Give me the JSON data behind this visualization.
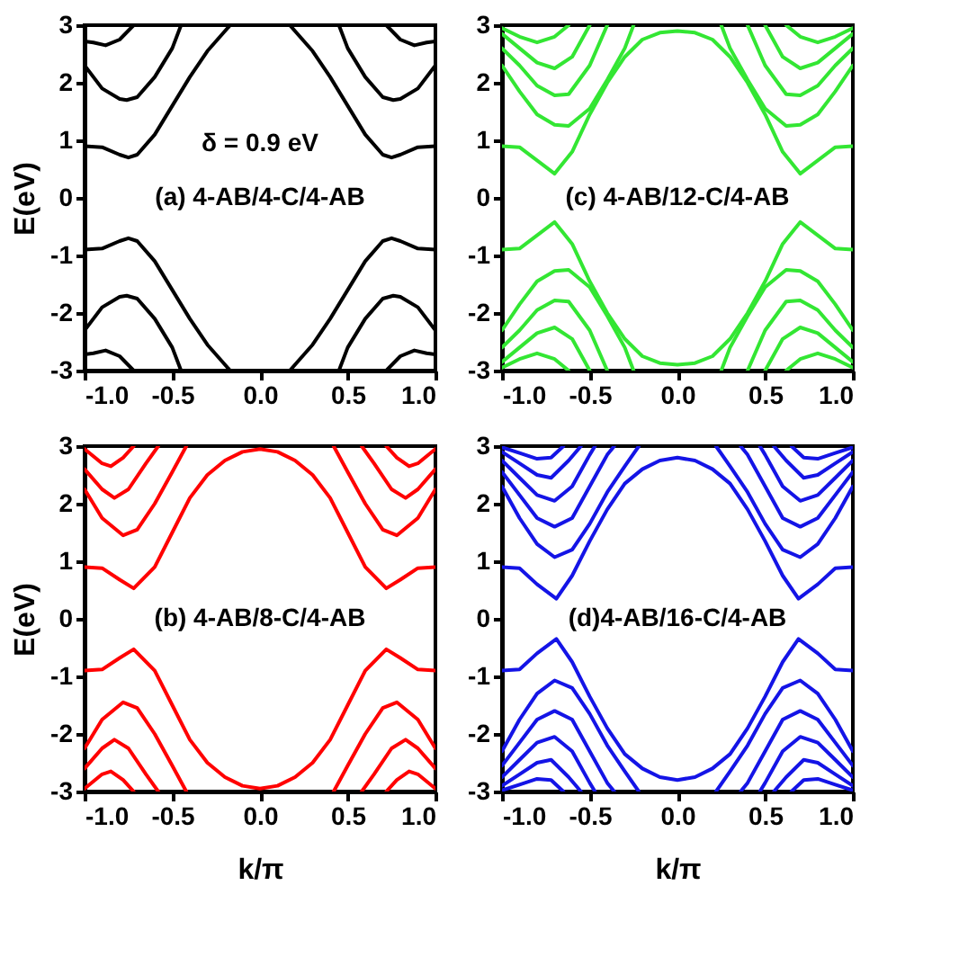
{
  "chart_data": [
    {
      "type": "line",
      "ylabel": "E(eV)",
      "annotations": [
        "δ = 0.9 eV",
        "(a)   4-AB/4-C/4-AB"
      ],
      "xlim": [
        -1,
        1
      ],
      "ylim": [
        -3,
        3
      ],
      "xticks": [
        {
          "value": -1,
          "label": "-1.0"
        },
        {
          "value": -0.5,
          "label": "-0.5"
        },
        {
          "value": 0,
          "label": "0.0"
        },
        {
          "value": 0.5,
          "label": "0.5"
        },
        {
          "value": 1,
          "label": "1.0"
        }
      ],
      "yticks": [
        -3,
        -2,
        -1,
        0,
        1,
        2,
        3
      ],
      "series": [
        {
          "color": "#000000",
          "x": [
            -1,
            -0.9,
            -0.8,
            -0.75,
            -0.7,
            -0.6,
            -0.5,
            -0.4,
            -0.3,
            -0.17,
            0,
            0.17,
            0.3,
            0.4,
            0.5,
            0.6,
            0.7,
            0.75,
            0.8,
            0.9,
            1
          ],
          "values": [
            0.9,
            0.88,
            0.75,
            0.7,
            0.75,
            1.1,
            1.6,
            2.1,
            2.55,
            3,
            null,
            3,
            2.55,
            2.1,
            1.6,
            1.1,
            0.75,
            0.7,
            0.75,
            0.88,
            0.9
          ]
        },
        {
          "color": "#000000",
          "x": [
            -1,
            -0.9,
            -0.8,
            -0.76,
            -0.7,
            -0.6,
            -0.5,
            -0.45,
            0,
            0.45,
            0.5,
            0.6,
            0.7,
            0.76,
            0.8,
            0.9,
            1
          ],
          "values": [
            2.3,
            1.9,
            1.72,
            1.7,
            1.75,
            2.1,
            2.6,
            3,
            null,
            3,
            2.6,
            2.1,
            1.75,
            1.7,
            1.72,
            1.9,
            2.3
          ]
        },
        {
          "color": "#000000",
          "x": [
            -1,
            -0.95,
            -0.88,
            -0.8,
            -0.72,
            0,
            0.72,
            0.8,
            0.88,
            0.95,
            1
          ],
          "values": [
            2.72,
            2.7,
            2.65,
            2.75,
            3,
            null,
            3,
            2.75,
            2.65,
            2.7,
            2.72
          ]
        },
        {
          "color": "#000000",
          "x": [
            -1,
            -0.9,
            -0.8,
            -0.75,
            -0.7,
            -0.6,
            -0.5,
            -0.4,
            -0.3,
            -0.17,
            0,
            0.17,
            0.3,
            0.4,
            0.5,
            0.6,
            0.7,
            0.75,
            0.8,
            0.9,
            1
          ],
          "values": [
            -0.9,
            -0.88,
            -0.75,
            -0.7,
            -0.75,
            -1.1,
            -1.6,
            -2.1,
            -2.55,
            -3,
            null,
            -3,
            -2.55,
            -2.1,
            -1.6,
            -1.1,
            -0.75,
            -0.7,
            -0.75,
            -0.88,
            -0.9
          ]
        },
        {
          "color": "#000000",
          "x": [
            -1,
            -0.9,
            -0.8,
            -0.76,
            -0.7,
            -0.6,
            -0.5,
            -0.45,
            0,
            0.45,
            0.5,
            0.6,
            0.7,
            0.76,
            0.8,
            0.9,
            1
          ],
          "values": [
            -2.3,
            -1.9,
            -1.72,
            -1.7,
            -1.75,
            -2.1,
            -2.6,
            -3,
            null,
            -3,
            -2.6,
            -2.1,
            -1.75,
            -1.7,
            -1.72,
            -1.9,
            -2.3
          ]
        },
        {
          "color": "#000000",
          "x": [
            -1,
            -0.95,
            -0.88,
            -0.8,
            -0.72,
            0,
            0.72,
            0.8,
            0.88,
            0.95,
            1
          ],
          "values": [
            -2.72,
            -2.7,
            -2.65,
            -2.75,
            -3,
            null,
            -3,
            -2.75,
            -2.65,
            -2.7,
            -2.72
          ]
        }
      ]
    },
    {
      "type": "line",
      "annotations": [
        "(c)  4-AB/12-C/4-AB"
      ],
      "xlim": [
        -1,
        1
      ],
      "ylim": [
        -3,
        3
      ],
      "xticks": [
        {
          "value": -1,
          "label": "-1.0"
        },
        {
          "value": -0.5,
          "label": "-0.5"
        },
        {
          "value": 0,
          "label": "0.0"
        },
        {
          "value": 0.5,
          "label": "0.5"
        },
        {
          "value": 1,
          "label": "1.0"
        }
      ],
      "yticks": [
        -3,
        -2,
        -1,
        0,
        1,
        2,
        3
      ],
      "series": [
        {
          "color": "#33e633",
          "x": [
            -1,
            -0.9,
            -0.8,
            -0.7,
            -0.6,
            -0.5,
            -0.4,
            -0.3,
            -0.2,
            -0.1,
            0,
            0.1,
            0.2,
            0.3,
            0.4,
            0.5,
            0.6,
            0.7,
            0.8,
            0.9,
            1
          ],
          "values": [
            0.9,
            0.88,
            0.65,
            0.42,
            0.8,
            1.45,
            2,
            2.45,
            2.75,
            2.87,
            2.9,
            2.87,
            2.75,
            2.45,
            2,
            1.45,
            0.8,
            0.42,
            0.65,
            0.88,
            0.9
          ]
        },
        {
          "color": "#33e633",
          "x": [
            -1,
            -0.9,
            -0.8,
            -0.7,
            -0.62,
            -0.5,
            -0.4,
            -0.3,
            -0.25,
            0,
            0.25,
            0.3,
            0.4,
            0.5,
            0.62,
            0.7,
            0.8,
            0.9,
            1
          ],
          "values": [
            2.3,
            1.85,
            1.45,
            1.27,
            1.25,
            1.55,
            2.05,
            2.6,
            3,
            null,
            3,
            2.6,
            2.05,
            1.55,
            1.25,
            1.27,
            1.45,
            1.85,
            2.3
          ]
        },
        {
          "color": "#33e633",
          "x": [
            -1,
            -0.9,
            -0.8,
            -0.7,
            -0.62,
            -0.5,
            -0.4,
            0,
            0.4,
            0.5,
            0.62,
            0.7,
            0.8,
            0.9,
            1
          ],
          "values": [
            2.6,
            2.3,
            1.95,
            1.78,
            1.8,
            2.3,
            3,
            null,
            3,
            2.3,
            1.8,
            1.78,
            1.95,
            2.3,
            2.6
          ]
        },
        {
          "color": "#33e633",
          "x": [
            -1,
            -0.9,
            -0.8,
            -0.7,
            -0.6,
            -0.5,
            0,
            0.5,
            0.6,
            0.7,
            0.8,
            0.9,
            1
          ],
          "values": [
            2.85,
            2.6,
            2.35,
            2.25,
            2.45,
            3,
            null,
            3,
            2.45,
            2.25,
            2.35,
            2.6,
            2.85
          ]
        },
        {
          "color": "#33e633",
          "x": [
            -1,
            -0.9,
            -0.8,
            -0.7,
            -0.62,
            0,
            0.62,
            0.7,
            0.8,
            0.9,
            1
          ],
          "values": [
            2.95,
            2.8,
            2.7,
            2.8,
            3,
            null,
            3,
            2.8,
            2.7,
            2.8,
            2.95
          ]
        },
        {
          "color": "#33e633",
          "x": [
            -1,
            -0.9,
            -0.8,
            -0.7,
            -0.6,
            -0.5,
            -0.4,
            -0.3,
            -0.2,
            -0.1,
            0,
            0.1,
            0.2,
            0.3,
            0.4,
            0.5,
            0.6,
            0.7,
            0.8,
            0.9,
            1
          ],
          "values": [
            -0.9,
            -0.88,
            -0.65,
            -0.42,
            -0.8,
            -1.45,
            -2,
            -2.45,
            -2.75,
            -2.87,
            -2.9,
            -2.87,
            -2.75,
            -2.45,
            -2,
            -1.45,
            -0.8,
            -0.42,
            -0.65,
            -0.88,
            -0.9
          ]
        },
        {
          "color": "#33e633",
          "x": [
            -1,
            -0.9,
            -0.8,
            -0.7,
            -0.62,
            -0.5,
            -0.4,
            -0.3,
            -0.25,
            0,
            0.25,
            0.3,
            0.4,
            0.5,
            0.62,
            0.7,
            0.8,
            0.9,
            1
          ],
          "values": [
            -2.3,
            -1.85,
            -1.45,
            -1.27,
            -1.25,
            -1.55,
            -2.05,
            -2.6,
            -3,
            null,
            -3,
            -2.6,
            -2.05,
            -1.55,
            -1.25,
            -1.27,
            -1.45,
            -1.85,
            -2.3
          ]
        },
        {
          "color": "#33e633",
          "x": [
            -1,
            -0.9,
            -0.8,
            -0.7,
            -0.62,
            -0.5,
            -0.4,
            0,
            0.4,
            0.5,
            0.62,
            0.7,
            0.8,
            0.9,
            1
          ],
          "values": [
            -2.6,
            -2.3,
            -1.95,
            -1.78,
            -1.8,
            -2.3,
            -3,
            null,
            -3,
            -2.3,
            -1.8,
            -1.78,
            -1.95,
            -2.3,
            -2.6
          ]
        },
        {
          "color": "#33e633",
          "x": [
            -1,
            -0.9,
            -0.8,
            -0.7,
            -0.6,
            -0.5,
            0,
            0.5,
            0.6,
            0.7,
            0.8,
            0.9,
            1
          ],
          "values": [
            -2.85,
            -2.6,
            -2.35,
            -2.25,
            -2.45,
            -3,
            null,
            -3,
            -2.45,
            -2.25,
            -2.35,
            -2.6,
            -2.85
          ]
        },
        {
          "color": "#33e633",
          "x": [
            -1,
            -0.9,
            -0.8,
            -0.7,
            -0.62,
            0,
            0.62,
            0.7,
            0.8,
            0.9,
            1
          ],
          "values": [
            -2.95,
            -2.8,
            -2.7,
            -2.8,
            -3,
            null,
            -3,
            -2.8,
            -2.7,
            -2.8,
            -2.95
          ]
        }
      ]
    },
    {
      "type": "line",
      "xlabel": "k/π",
      "ylabel": "E(eV)",
      "annotations": [
        "(b) 4-AB/8-C/4-AB"
      ],
      "xlim": [
        -1,
        1
      ],
      "ylim": [
        -3,
        3
      ],
      "xticks": [
        {
          "value": -1,
          "label": "-1.0"
        },
        {
          "value": -0.5,
          "label": "-0.5"
        },
        {
          "value": 0,
          "label": "0.0"
        },
        {
          "value": 0.5,
          "label": "0.5"
        },
        {
          "value": 1,
          "label": "1.0"
        }
      ],
      "yticks": [
        -3,
        -2,
        -1,
        0,
        1,
        2,
        3
      ],
      "series": [
        {
          "color": "#ff0000",
          "x": [
            -1,
            -0.9,
            -0.8,
            -0.72,
            -0.6,
            -0.5,
            -0.4,
            -0.3,
            -0.2,
            -0.1,
            0,
            0.1,
            0.2,
            0.3,
            0.4,
            0.5,
            0.6,
            0.72,
            0.8,
            0.9,
            1
          ],
          "values": [
            0.9,
            0.88,
            0.68,
            0.53,
            0.9,
            1.5,
            2.1,
            2.5,
            2.75,
            2.9,
            2.95,
            2.9,
            2.75,
            2.5,
            2.1,
            1.5,
            0.9,
            0.53,
            0.68,
            0.88,
            0.9
          ]
        },
        {
          "color": "#ff0000",
          "x": [
            -1,
            -0.9,
            -0.78,
            -0.7,
            -0.6,
            -0.5,
            -0.42,
            0,
            0.42,
            0.5,
            0.6,
            0.7,
            0.78,
            0.9,
            1
          ],
          "values": [
            2.25,
            1.75,
            1.45,
            1.55,
            2,
            2.55,
            3,
            null,
            3,
            2.55,
            2,
            1.55,
            1.45,
            1.75,
            2.25
          ]
        },
        {
          "color": "#ff0000",
          "x": [
            -1,
            -0.9,
            -0.83,
            -0.75,
            -0.65,
            -0.58,
            0,
            0.58,
            0.65,
            0.75,
            0.83,
            0.9,
            1
          ],
          "values": [
            2.6,
            2.25,
            2.1,
            2.25,
            2.7,
            3,
            null,
            3,
            2.7,
            2.25,
            2.1,
            2.25,
            2.6
          ]
        },
        {
          "color": "#ff0000",
          "x": [
            -1,
            -0.9,
            -0.85,
            -0.78,
            -0.72,
            0,
            0.72,
            0.78,
            0.85,
            0.9,
            1
          ],
          "values": [
            2.95,
            2.7,
            2.65,
            2.8,
            3,
            null,
            3,
            2.8,
            2.65,
            2.7,
            2.95
          ]
        },
        {
          "color": "#ff0000",
          "x": [
            -1,
            -0.9,
            -0.8,
            -0.72,
            -0.6,
            -0.5,
            -0.4,
            -0.3,
            -0.2,
            -0.1,
            0,
            0.1,
            0.2,
            0.3,
            0.4,
            0.5,
            0.6,
            0.72,
            0.8,
            0.9,
            1
          ],
          "values": [
            -0.9,
            -0.88,
            -0.68,
            -0.53,
            -0.9,
            -1.5,
            -2.1,
            -2.5,
            -2.75,
            -2.9,
            -2.95,
            -2.9,
            -2.75,
            -2.5,
            -2.1,
            -1.5,
            -0.9,
            -0.53,
            -0.68,
            -0.88,
            -0.9
          ]
        },
        {
          "color": "#ff0000",
          "x": [
            -1,
            -0.9,
            -0.78,
            -0.7,
            -0.6,
            -0.5,
            -0.42,
            0,
            0.42,
            0.5,
            0.6,
            0.7,
            0.78,
            0.9,
            1
          ],
          "values": [
            -2.25,
            -1.75,
            -1.45,
            -1.55,
            -2,
            -2.55,
            -3,
            null,
            -3,
            -2.55,
            -2,
            -1.55,
            -1.45,
            -1.75,
            -2.25
          ]
        },
        {
          "color": "#ff0000",
          "x": [
            -1,
            -0.9,
            -0.83,
            -0.75,
            -0.65,
            -0.58,
            0,
            0.58,
            0.65,
            0.75,
            0.83,
            0.9,
            1
          ],
          "values": [
            -2.6,
            -2.25,
            -2.1,
            -2.25,
            -2.7,
            -3,
            null,
            -3,
            -2.7,
            -2.25,
            -2.1,
            -2.25,
            -2.6
          ]
        },
        {
          "color": "#ff0000",
          "x": [
            -1,
            -0.9,
            -0.85,
            -0.78,
            -0.72,
            0,
            0.72,
            0.78,
            0.85,
            0.9,
            1
          ],
          "values": [
            -2.95,
            -2.7,
            -2.65,
            -2.8,
            -3,
            null,
            -3,
            -2.8,
            -2.65,
            -2.7,
            -2.95
          ]
        }
      ]
    },
    {
      "type": "line",
      "xlabel": "k/π",
      "annotations": [
        "(d)4-AB/16-C/4-AB"
      ],
      "xlim": [
        -1,
        1
      ],
      "ylim": [
        -3,
        3
      ],
      "xticks": [
        {
          "value": -1,
          "label": "-1.0"
        },
        {
          "value": -0.5,
          "label": "-0.5"
        },
        {
          "value": 0,
          "label": "0.0"
        },
        {
          "value": 0.5,
          "label": "0.5"
        },
        {
          "value": 1,
          "label": "1.0"
        }
      ],
      "yticks": [
        -3,
        -2,
        -1,
        0,
        1,
        2,
        3
      ],
      "series": [
        {
          "color": "#1414e6",
          "x": [
            -1,
            -0.9,
            -0.8,
            -0.69,
            -0.6,
            -0.5,
            -0.4,
            -0.3,
            -0.2,
            -0.1,
            0,
            0.1,
            0.2,
            0.3,
            0.4,
            0.5,
            0.6,
            0.69,
            0.8,
            0.9,
            1
          ],
          "values": [
            0.9,
            0.88,
            0.6,
            0.35,
            0.75,
            1.35,
            1.9,
            2.35,
            2.6,
            2.75,
            2.8,
            2.75,
            2.6,
            2.35,
            1.9,
            1.35,
            0.75,
            0.35,
            0.6,
            0.88,
            0.9
          ]
        },
        {
          "color": "#1414e6",
          "x": [
            -1,
            -0.9,
            -0.8,
            -0.7,
            -0.6,
            -0.5,
            -0.4,
            -0.3,
            -0.22,
            0,
            0.22,
            0.3,
            0.4,
            0.5,
            0.6,
            0.7,
            0.8,
            0.9,
            1
          ],
          "values": [
            2.3,
            1.75,
            1.3,
            1.07,
            1.2,
            1.65,
            2.2,
            2.65,
            3,
            null,
            3,
            2.65,
            2.2,
            1.65,
            1.2,
            1.07,
            1.3,
            1.75,
            2.3
          ]
        },
        {
          "color": "#1414e6",
          "x": [
            -1,
            -0.9,
            -0.8,
            -0.7,
            -0.6,
            -0.5,
            -0.4,
            -0.36,
            0,
            0.36,
            0.4,
            0.5,
            0.6,
            0.7,
            0.8,
            0.9,
            1
          ],
          "values": [
            2.55,
            2.15,
            1.75,
            1.6,
            1.75,
            2.3,
            2.85,
            3,
            null,
            3,
            2.85,
            2.3,
            1.75,
            1.6,
            1.75,
            2.15,
            2.55
          ]
        },
        {
          "color": "#1414e6",
          "x": [
            -1,
            -0.9,
            -0.8,
            -0.7,
            -0.6,
            -0.5,
            -0.47,
            0,
            0.47,
            0.5,
            0.6,
            0.7,
            0.8,
            0.9,
            1
          ],
          "values": [
            2.75,
            2.45,
            2.15,
            2.05,
            2.3,
            2.85,
            3,
            null,
            3,
            2.85,
            2.3,
            2.05,
            2.15,
            2.45,
            2.75
          ]
        },
        {
          "color": "#1414e6",
          "x": [
            -1,
            -0.9,
            -0.8,
            -0.72,
            -0.62,
            -0.55,
            0,
            0.55,
            0.62,
            0.72,
            0.8,
            0.9,
            1
          ],
          "values": [
            2.9,
            2.7,
            2.5,
            2.45,
            2.75,
            3,
            null,
            3,
            2.75,
            2.45,
            2.5,
            2.7,
            2.9
          ]
        },
        {
          "color": "#1414e6",
          "x": [
            -1,
            -0.9,
            -0.8,
            -0.72,
            -0.65,
            0,
            0.65,
            0.72,
            0.8,
            0.9,
            1
          ],
          "values": [
            2.98,
            2.88,
            2.78,
            2.8,
            3,
            null,
            3,
            2.8,
            2.78,
            2.88,
            2.98
          ]
        },
        {
          "color": "#1414e6",
          "x": [
            -1,
            -0.9,
            -0.8,
            -0.69,
            -0.6,
            -0.5,
            -0.4,
            -0.3,
            -0.2,
            -0.1,
            0,
            0.1,
            0.2,
            0.3,
            0.4,
            0.5,
            0.6,
            0.69,
            0.8,
            0.9,
            1
          ],
          "values": [
            -0.9,
            -0.88,
            -0.6,
            -0.35,
            -0.75,
            -1.35,
            -1.9,
            -2.35,
            -2.6,
            -2.75,
            -2.8,
            -2.75,
            -2.6,
            -2.35,
            -1.9,
            -1.35,
            -0.75,
            -0.35,
            -0.6,
            -0.88,
            -0.9
          ]
        },
        {
          "color": "#1414e6",
          "x": [
            -1,
            -0.9,
            -0.8,
            -0.7,
            -0.6,
            -0.5,
            -0.4,
            -0.3,
            -0.22,
            0,
            0.22,
            0.3,
            0.4,
            0.5,
            0.6,
            0.7,
            0.8,
            0.9,
            1
          ],
          "values": [
            -2.3,
            -1.75,
            -1.3,
            -1.07,
            -1.2,
            -1.65,
            -2.2,
            -2.65,
            -3,
            null,
            -3,
            -2.65,
            -2.2,
            -1.65,
            -1.2,
            -1.07,
            -1.3,
            -1.75,
            -2.3
          ]
        },
        {
          "color": "#1414e6",
          "x": [
            -1,
            -0.9,
            -0.8,
            -0.7,
            -0.6,
            -0.5,
            -0.4,
            -0.36,
            0,
            0.36,
            0.4,
            0.5,
            0.6,
            0.7,
            0.8,
            0.9,
            1
          ],
          "values": [
            -2.55,
            -2.15,
            -1.75,
            -1.6,
            -1.75,
            -2.3,
            -2.85,
            -3,
            null,
            -3,
            -2.85,
            -2.3,
            -1.75,
            -1.6,
            -1.75,
            -2.15,
            -2.55
          ]
        },
        {
          "color": "#1414e6",
          "x": [
            -1,
            -0.9,
            -0.8,
            -0.7,
            -0.6,
            -0.5,
            -0.47,
            0,
            0.47,
            0.5,
            0.6,
            0.7,
            0.8,
            0.9,
            1
          ],
          "values": [
            -2.75,
            -2.45,
            -2.15,
            -2.05,
            -2.3,
            -2.85,
            -3,
            null,
            -3,
            -2.85,
            -2.3,
            -2.05,
            -2.15,
            -2.45,
            -2.75
          ]
        },
        {
          "color": "#1414e6",
          "x": [
            -1,
            -0.9,
            -0.8,
            -0.72,
            -0.62,
            -0.55,
            0,
            0.55,
            0.62,
            0.72,
            0.8,
            0.9,
            1
          ],
          "values": [
            -2.9,
            -2.7,
            -2.5,
            -2.45,
            -2.75,
            -3,
            null,
            -3,
            -2.75,
            -2.45,
            -2.5,
            -2.7,
            -2.9
          ]
        },
        {
          "color": "#1414e6",
          "x": [
            -1,
            -0.9,
            -0.8,
            -0.72,
            -0.65,
            0,
            0.65,
            0.72,
            0.8,
            0.9,
            1
          ],
          "values": [
            -2.98,
            -2.88,
            -2.78,
            -2.8,
            -3,
            null,
            -3,
            -2.8,
            -2.78,
            -2.88,
            -2.98
          ]
        }
      ]
    }
  ]
}
